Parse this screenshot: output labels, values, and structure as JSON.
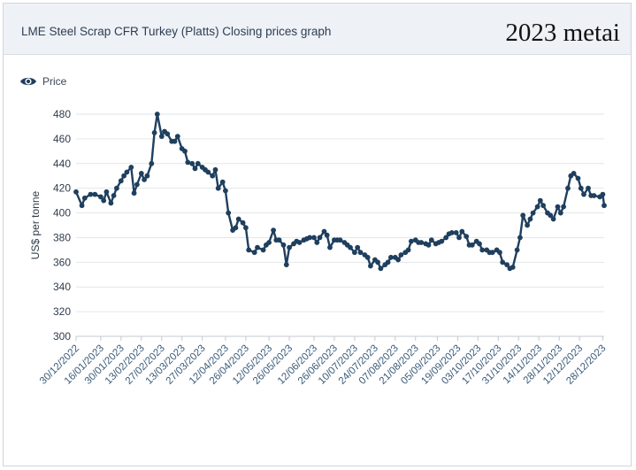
{
  "header": {
    "title": "LME Steel Scrap CFR Turkey (Platts) Closing prices graph",
    "overlay_text": "2023 metai"
  },
  "legend": {
    "icon": "eye-icon",
    "label": "Price"
  },
  "colors": {
    "series": "#1f3f5e",
    "grid": "#e3e6ea",
    "header_bg": "#eef1f5"
  },
  "chart_data": {
    "type": "line",
    "title": "LME Steel Scrap CFR Turkey (Platts) Closing prices graph",
    "xlabel": "",
    "ylabel": "US$ per tonne",
    "ylim": [
      300,
      480
    ],
    "yticks": [
      300,
      320,
      340,
      360,
      380,
      400,
      420,
      440,
      460,
      480
    ],
    "grid": true,
    "legend_position": "top-left",
    "xlim": [
      "2022-12-30",
      "2023-12-29"
    ],
    "xtick_labels": [
      "30/12/2022",
      "16/01/2023",
      "30/01/2023",
      "13/02/2023",
      "27/02/2023",
      "13/03/2023",
      "27/03/2023",
      "12/04/2023",
      "26/04/2023",
      "12/05/2023",
      "26/05/2023",
      "12/06/2023",
      "26/06/2023",
      "10/07/2023",
      "24/07/2023",
      "07/08/2023",
      "21/08/2023",
      "05/09/2023",
      "19/09/2023",
      "03/10/2023",
      "17/10/2023",
      "31/10/2023",
      "14/11/2023",
      "28/11/2023",
      "12/12/2023",
      "28/12/2023"
    ],
    "series": [
      {
        "name": "Price",
        "x": [
          "2022-12-30",
          "2023-01-03",
          "2023-01-05",
          "2023-01-09",
          "2023-01-12",
          "2023-01-16",
          "2023-01-18",
          "2023-01-20",
          "2023-01-23",
          "2023-01-25",
          "2023-01-27",
          "2023-01-30",
          "2023-02-01",
          "2023-02-03",
          "2023-02-06",
          "2023-02-08",
          "2023-02-10",
          "2023-02-13",
          "2023-02-15",
          "2023-02-17",
          "2023-02-20",
          "2023-02-22",
          "2023-02-24",
          "2023-02-27",
          "2023-03-01",
          "2023-03-03",
          "2023-03-06",
          "2023-03-08",
          "2023-03-10",
          "2023-03-13",
          "2023-03-15",
          "2023-03-17",
          "2023-03-20",
          "2023-03-22",
          "2023-03-24",
          "2023-03-27",
          "2023-03-29",
          "2023-03-31",
          "2023-04-03",
          "2023-04-05",
          "2023-04-07",
          "2023-04-10",
          "2023-04-12",
          "2023-04-14",
          "2023-04-17",
          "2023-04-19",
          "2023-04-21",
          "2023-04-24",
          "2023-04-26",
          "2023-04-28",
          "2023-05-02",
          "2023-05-04",
          "2023-05-08",
          "2023-05-10",
          "2023-05-12",
          "2023-05-15",
          "2023-05-17",
          "2023-05-19",
          "2023-05-22",
          "2023-05-24",
          "2023-05-26",
          "2023-05-29",
          "2023-05-31",
          "2023-06-02",
          "2023-06-05",
          "2023-06-07",
          "2023-06-09",
          "2023-06-12",
          "2023-06-14",
          "2023-06-16",
          "2023-06-19",
          "2023-06-21",
          "2023-06-23",
          "2023-06-26",
          "2023-06-28",
          "2023-06-30",
          "2023-07-03",
          "2023-07-05",
          "2023-07-07",
          "2023-07-10",
          "2023-07-12",
          "2023-07-14",
          "2023-07-17",
          "2023-07-19",
          "2023-07-21",
          "2023-07-24",
          "2023-07-26",
          "2023-07-28",
          "2023-07-31",
          "2023-08-02",
          "2023-08-04",
          "2023-08-07",
          "2023-08-09",
          "2023-08-11",
          "2023-08-14",
          "2023-08-16",
          "2023-08-18",
          "2023-08-21",
          "2023-08-23",
          "2023-08-25",
          "2023-08-28",
          "2023-08-30",
          "2023-09-01",
          "2023-09-04",
          "2023-09-06",
          "2023-09-08",
          "2023-09-11",
          "2023-09-13",
          "2023-09-15",
          "2023-09-18",
          "2023-09-20",
          "2023-09-22",
          "2023-09-25",
          "2023-09-27",
          "2023-09-29",
          "2023-10-02",
          "2023-10-04",
          "2023-10-06",
          "2023-10-09",
          "2023-10-11",
          "2023-10-13",
          "2023-10-16",
          "2023-10-18",
          "2023-10-20",
          "2023-10-23",
          "2023-10-25",
          "2023-10-27",
          "2023-10-30",
          "2023-11-01",
          "2023-11-03",
          "2023-11-06",
          "2023-11-08",
          "2023-11-10",
          "2023-11-13",
          "2023-11-15",
          "2023-11-17",
          "2023-11-20",
          "2023-11-22",
          "2023-11-24",
          "2023-11-27",
          "2023-11-29",
          "2023-12-01",
          "2023-12-04",
          "2023-12-06",
          "2023-12-08",
          "2023-12-11",
          "2023-12-13",
          "2023-12-15",
          "2023-12-18",
          "2023-12-20",
          "2023-12-22",
          "2023-12-26",
          "2023-12-28",
          "2023-12-29"
        ],
        "y": [
          417,
          406,
          412,
          415,
          415,
          413,
          410,
          417,
          408,
          414,
          420,
          426,
          430,
          433,
          437,
          416,
          423,
          432,
          427,
          430,
          440,
          465,
          480,
          462,
          466,
          464,
          458,
          458,
          462,
          452,
          450,
          441,
          440,
          436,
          440,
          437,
          435,
          433,
          430,
          435,
          420,
          425,
          418,
          400,
          386,
          388,
          395,
          392,
          388,
          370,
          368,
          372,
          370,
          374,
          376,
          386,
          378,
          378,
          374,
          358,
          372,
          375,
          377,
          376,
          378,
          379,
          380,
          380,
          376,
          380,
          385,
          382,
          372,
          378,
          378,
          378,
          376,
          374,
          372,
          368,
          372,
          368,
          366,
          364,
          357,
          362,
          360,
          355,
          358,
          360,
          364,
          364,
          362,
          366,
          368,
          370,
          377,
          378,
          376,
          376,
          375,
          374,
          378,
          375,
          376,
          377,
          380,
          383,
          384,
          384,
          380,
          385,
          381,
          374,
          374,
          377,
          375,
          370,
          370,
          368,
          368,
          370,
          368,
          360,
          358,
          355,
          356,
          370,
          380,
          398,
          390,
          395,
          400,
          405,
          410,
          406,
          400,
          398,
          395,
          405,
          400,
          405,
          420,
          430,
          432,
          428,
          420,
          415,
          420,
          414,
          414,
          413,
          415,
          406
        ]
      }
    ]
  }
}
